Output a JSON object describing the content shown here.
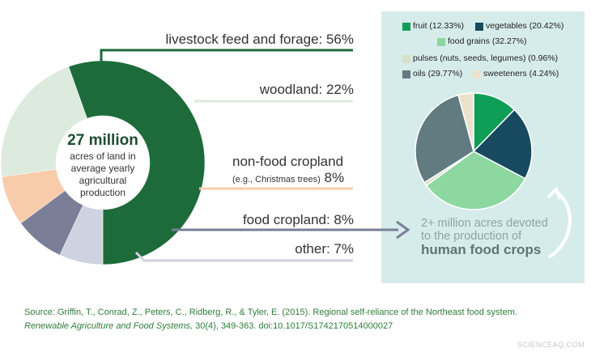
{
  "donut": {
    "center_title": "27 million",
    "center_text": [
      "acres of land in",
      "average yearly",
      "agricultural",
      "production"
    ]
  },
  "labels": {
    "livestock": "livestock feed and forage: 56%",
    "woodland": "woodland: 22%",
    "nonfood_line1": "non-food cropland",
    "nonfood_sub": "(e.g., Christmas trees)",
    "nonfood_pct": "8%",
    "food": "food cropland: 8%",
    "other": "other: 7%"
  },
  "callout": {
    "line1": "2+ million acres devoted",
    "line2": "to the production of",
    "line3": "human food crops"
  },
  "source": {
    "line1": "Source: Griffin, T., Conrad, Z., Peters, C., Ridberg, R., & Tyler, E. (2015). Regional self-reliance of the Northeast food system.",
    "line2_italic": "Renewable Agriculture and Food Systems,",
    "line2_rest": " 30(4), 349-363. doi:10.1017/S1742170514000027"
  },
  "watermark": "SCIENCEAQ.COM",
  "chart_data": [
    {
      "type": "pie",
      "variant": "donut",
      "categories": [
        "livestock feed and forage",
        "woodland",
        "non-food cropland",
        "food cropland",
        "other"
      ],
      "values": [
        56,
        22,
        8,
        8,
        7
      ],
      "colors": [
        "#1d6b3a",
        "#dcebdd",
        "#f8ccaa",
        "#7a7f97",
        "#cfd2e0"
      ]
    },
    {
      "type": "pie",
      "categories": [
        "fruit",
        "vegetables",
        "food grains",
        "pulses (nuts, seeds, legumes)",
        "oils",
        "sweeteners"
      ],
      "values": [
        12.33,
        20.42,
        32.27,
        0.96,
        29.77,
        4.24
      ],
      "labels": [
        "fruit (12.33%)",
        "vegetables (20.42%)",
        "food grains (32.27%)",
        "pulses (nuts, seeds, legumes) (0.96%)",
        "oils (29.77%)",
        "sweeteners (4.24%)"
      ],
      "colors": [
        "#0f9e55",
        "#174a5e",
        "#8dd7a0",
        "#d8dfc8",
        "#617b80",
        "#ece2cc"
      ]
    }
  ]
}
